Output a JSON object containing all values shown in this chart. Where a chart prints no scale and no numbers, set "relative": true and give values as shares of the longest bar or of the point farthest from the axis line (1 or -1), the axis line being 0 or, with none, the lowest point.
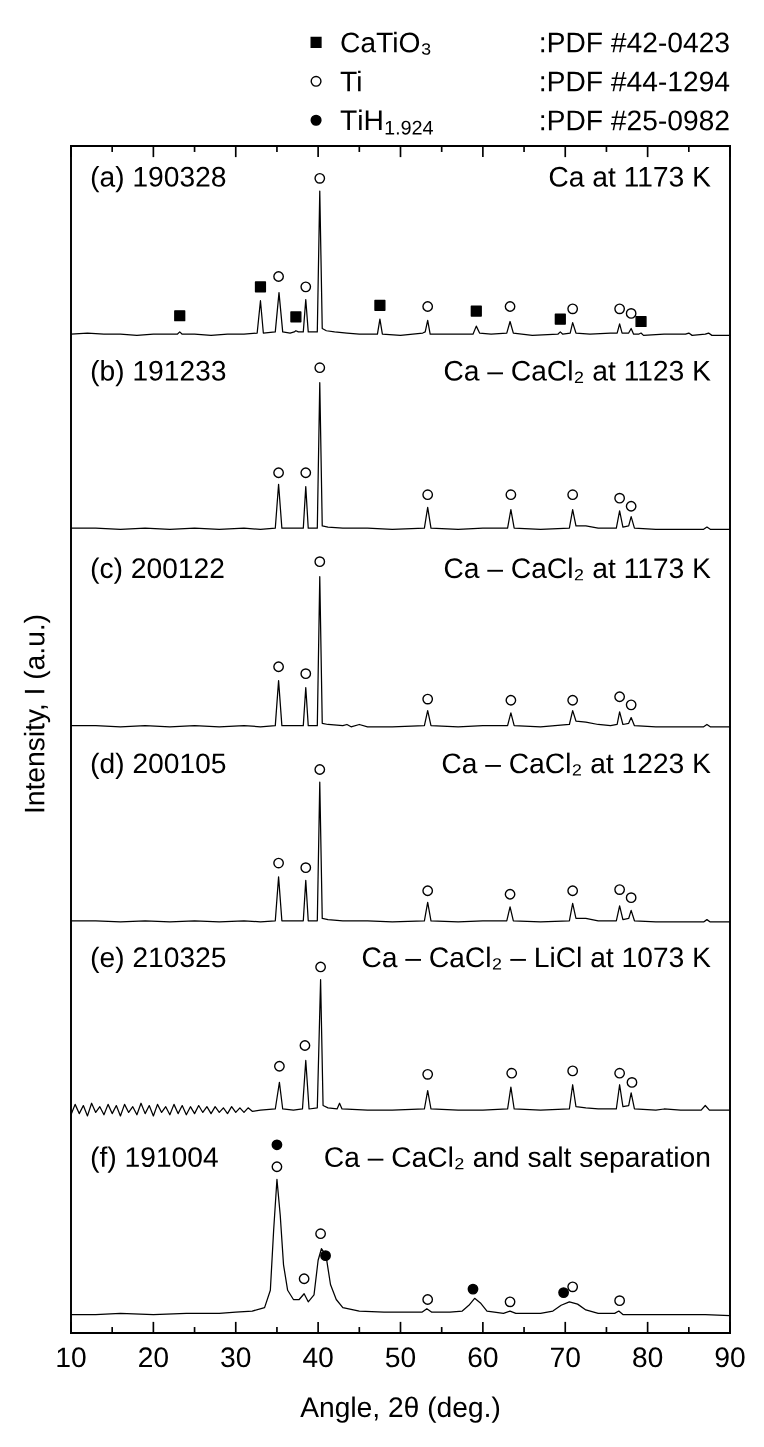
{
  "chart_data": {
    "type": "line",
    "relative": true,
    "xlabel": "Angle, 2θ (deg.)",
    "ylabel": "Intensity, I (a.u.)",
    "legend": "top right",
    "xlim": [
      10,
      90
    ],
    "xticks": [
      10,
      {
        "value": 15,
        "label": null
      },
      20,
      {
        "value": 25,
        "label": null
      },
      30,
      {
        "value": 35,
        "label": null
      },
      40,
      {
        "value": 45,
        "label": null
      },
      50,
      {
        "value": 55,
        "label": null
      },
      60,
      {
        "value": 65,
        "label": null
      },
      70,
      {
        "value": 75,
        "label": null
      },
      80,
      {
        "value": 85,
        "label": null
      },
      90
    ],
    "annotations": [
      ":PDF #42-0423",
      ":PDF #44-1294",
      ":PDF #25-0982",
      "(a) 190328",
      "Ca at 1173 K",
      "(b) 191233",
      "Ca – CaCl₂ at 1123 K",
      "(c) 200122",
      "Ca – CaCl₂ at 1173 K",
      "(d) 200105",
      "Ca – CaCl₂ at 1223 K",
      "(e) 210325",
      "Ca – CaCl₂ – LiCl at 1073 K",
      "(f) 191004",
      "Ca – CaCl₂ and salt separation"
    ],
    "series": [
      {
        "color": "#000000",
        "x": [
          10,
          12,
          14,
          16,
          18,
          20,
          22,
          22.9,
          23.2,
          23.5,
          25,
          27,
          29,
          31,
          32.6,
          33.0,
          33.35,
          34.8,
          35.25,
          35.7,
          36.6,
          37.1,
          37.3,
          37.6,
          38.2,
          38.5,
          38.8,
          39.9,
          40.2,
          40.5,
          41.0,
          42.0,
          43.5,
          45,
          47.2,
          47.5,
          47.8,
          50,
          52.7,
          53.0,
          53.3,
          53.6,
          56,
          58.8,
          59.2,
          59.6,
          61,
          62.9,
          63.3,
          63.7,
          66,
          69.1,
          69.4,
          69.7,
          70.6,
          70.9,
          71.3,
          73,
          75.5,
          76.3,
          76.6,
          76.9,
          77.7,
          78.0,
          78.3,
          78.9,
          79.2,
          79.5,
          82,
          84.6,
          85.0,
          85.4,
          87,
          87.4,
          87.8,
          90
        ],
        "values": [
          0.865,
          0.866,
          0.865,
          0.865,
          0.864,
          0.865,
          0.865,
          0.865,
          0.867,
          0.865,
          0.865,
          0.864,
          0.865,
          0.865,
          0.866,
          0.894,
          0.866,
          0.867,
          0.901,
          0.867,
          0.866,
          0.867,
          0.868,
          0.867,
          0.867,
          0.895,
          0.867,
          0.867,
          0.989,
          0.87,
          0.868,
          0.867,
          0.866,
          0.865,
          0.865,
          0.878,
          0.865,
          0.864,
          0.866,
          0.867,
          0.877,
          0.865,
          0.865,
          0.865,
          0.872,
          0.866,
          0.865,
          0.866,
          0.876,
          0.866,
          0.864,
          0.865,
          0.867,
          0.865,
          0.866,
          0.875,
          0.866,
          0.865,
          0.866,
          0.866,
          0.874,
          0.866,
          0.866,
          0.87,
          0.865,
          0.865,
          0.866,
          0.864,
          0.865,
          0.865,
          0.866,
          0.864,
          0.865,
          0.866,
          0.864,
          0.864
        ]
      },
      {
        "color": "#000000",
        "x": [
          10,
          13,
          16,
          19,
          22,
          25,
          28,
          31,
          33,
          34.8,
          35.2,
          35.6,
          37,
          38.2,
          38.5,
          38.8,
          39.9,
          40.2,
          40.5,
          41.2,
          43,
          46,
          49,
          52.9,
          53.3,
          53.7,
          57,
          60,
          63.0,
          63.4,
          63.8,
          67,
          70.5,
          70.9,
          71.3,
          72.5,
          74,
          76.2,
          76.6,
          77.0,
          77.7,
          78.0,
          78.4,
          81,
          84,
          86.8,
          87.2,
          87.6,
          90
        ],
        "values": [
          0.697,
          0.697,
          0.696,
          0.697,
          0.696,
          0.697,
          0.696,
          0.697,
          0.696,
          0.697,
          0.735,
          0.697,
          0.697,
          0.697,
          0.733,
          0.697,
          0.697,
          0.823,
          0.699,
          0.698,
          0.697,
          0.697,
          0.696,
          0.697,
          0.715,
          0.697,
          0.696,
          0.697,
          0.697,
          0.713,
          0.697,
          0.696,
          0.697,
          0.713,
          0.699,
          0.699,
          0.697,
          0.697,
          0.712,
          0.698,
          0.699,
          0.707,
          0.697,
          0.696,
          0.696,
          0.696,
          0.698,
          0.696,
          0.696
        ]
      },
      {
        "color": "#000000",
        "x": [
          10,
          13,
          16,
          19,
          22,
          25,
          28,
          31,
          33,
          34.8,
          35.2,
          35.6,
          37,
          38.2,
          38.5,
          38.8,
          39.9,
          40.2,
          40.5,
          41.2,
          43,
          43.5,
          44,
          45,
          46,
          49,
          52.9,
          53.3,
          53.7,
          57,
          60,
          63.0,
          63.4,
          63.8,
          67,
          70.5,
          70.9,
          71.3,
          72.5,
          74,
          75.5,
          76.3,
          76.6,
          77.0,
          77.7,
          78.0,
          78.4,
          81,
          84,
          86.8,
          87.2,
          87.6,
          90
        ],
        "values": [
          0.526,
          0.526,
          0.525,
          0.526,
          0.525,
          0.526,
          0.525,
          0.526,
          0.525,
          0.526,
          0.565,
          0.526,
          0.526,
          0.526,
          0.559,
          0.526,
          0.526,
          0.655,
          0.528,
          0.527,
          0.526,
          0.527,
          0.525,
          0.527,
          0.525,
          0.525,
          0.526,
          0.539,
          0.526,
          0.525,
          0.526,
          0.526,
          0.537,
          0.526,
          0.525,
          0.527,
          0.539,
          0.53,
          0.529,
          0.527,
          0.526,
          0.527,
          0.538,
          0.527,
          0.528,
          0.533,
          0.526,
          0.525,
          0.525,
          0.525,
          0.527,
          0.525,
          0.525
        ]
      },
      {
        "color": "#000000",
        "x": [
          10,
          13,
          16,
          19,
          22,
          25,
          28,
          31,
          33,
          34.8,
          35.2,
          35.6,
          37,
          38.2,
          38.5,
          38.8,
          39.9,
          40.2,
          40.5,
          41.2,
          43,
          46,
          49,
          52.9,
          53.3,
          53.7,
          57,
          60,
          62.9,
          63.3,
          63.7,
          67,
          70.5,
          70.9,
          71.3,
          72.5,
          74,
          76.2,
          76.6,
          77.0,
          77.7,
          78.0,
          78.4,
          81,
          84,
          86.8,
          87.2,
          87.6,
          90
        ],
        "values": [
          0.357,
          0.357,
          0.356,
          0.357,
          0.356,
          0.357,
          0.356,
          0.357,
          0.356,
          0.357,
          0.395,
          0.357,
          0.357,
          0.357,
          0.392,
          0.357,
          0.357,
          0.477,
          0.359,
          0.358,
          0.357,
          0.357,
          0.356,
          0.357,
          0.373,
          0.357,
          0.356,
          0.357,
          0.357,
          0.369,
          0.357,
          0.356,
          0.357,
          0.372,
          0.359,
          0.359,
          0.357,
          0.357,
          0.37,
          0.358,
          0.359,
          0.366,
          0.357,
          0.356,
          0.356,
          0.356,
          0.358,
          0.356,
          0.356
        ]
      },
      {
        "color": "#000000",
        "x": [
          10,
          10.5,
          11,
          11.5,
          12,
          12.5,
          13,
          13.5,
          14,
          14.5,
          15,
          15.5,
          16,
          16.5,
          17,
          17.5,
          18,
          18.5,
          19,
          19.5,
          20,
          20.5,
          21,
          21.5,
          22,
          22.5,
          23,
          23.5,
          24,
          24.5,
          25,
          25.5,
          26,
          26.5,
          27,
          27.5,
          28,
          28.5,
          29,
          29.5,
          30,
          30.5,
          31,
          31.5,
          32,
          33,
          34.8,
          35.3,
          35.7,
          37,
          38.1,
          38.5,
          38.9,
          39.9,
          40.3,
          40.6,
          41.2,
          42.3,
          42.6,
          42.9,
          46,
          49,
          52.9,
          53.3,
          53.7,
          57,
          60,
          63.0,
          63.4,
          63.8,
          67,
          70.5,
          70.9,
          71.3,
          72.5,
          74,
          76.2,
          76.6,
          77.0,
          77.7,
          78.0,
          78.4,
          81,
          82,
          84,
          86.5,
          87,
          87.5,
          90
        ],
        "values": [
          0.189,
          0.198,
          0.19,
          0.197,
          0.188,
          0.199,
          0.191,
          0.196,
          0.189,
          0.198,
          0.19,
          0.197,
          0.188,
          0.198,
          0.191,
          0.196,
          0.189,
          0.199,
          0.19,
          0.197,
          0.188,
          0.198,
          0.191,
          0.196,
          0.189,
          0.198,
          0.19,
          0.197,
          0.189,
          0.196,
          0.19,
          0.197,
          0.191,
          0.196,
          0.19,
          0.196,
          0.191,
          0.195,
          0.19,
          0.196,
          0.191,
          0.195,
          0.191,
          0.195,
          0.192,
          0.193,
          0.194,
          0.217,
          0.194,
          0.193,
          0.194,
          0.236,
          0.194,
          0.195,
          0.306,
          0.197,
          0.195,
          0.194,
          0.199,
          0.194,
          0.193,
          0.193,
          0.194,
          0.21,
          0.194,
          0.193,
          0.193,
          0.194,
          0.213,
          0.194,
          0.193,
          0.194,
          0.215,
          0.196,
          0.195,
          0.194,
          0.194,
          0.215,
          0.196,
          0.197,
          0.208,
          0.194,
          0.193,
          0.194,
          0.193,
          0.193,
          0.197,
          0.193,
          0.193
        ]
      },
      {
        "color": "#000000",
        "x": [
          10,
          13,
          16,
          20,
          24,
          28,
          30,
          32,
          33.5,
          34.2,
          34.6,
          35.0,
          35.4,
          35.8,
          36.3,
          37.0,
          37.7,
          38.3,
          38.8,
          39.5,
          40.0,
          40.4,
          40.7,
          41.0,
          41.5,
          42.2,
          43,
          45,
          48,
          52.6,
          53.2,
          53.8,
          56,
          57.5,
          58.3,
          59.0,
          59.7,
          60.5,
          62.5,
          63.3,
          64,
          67,
          68.5,
          69.5,
          70.5,
          71.5,
          72.5,
          74,
          76,
          76.5,
          77,
          80,
          84,
          87,
          90
        ],
        "values": [
          0.016,
          0.016,
          0.017,
          0.016,
          0.017,
          0.017,
          0.018,
          0.019,
          0.022,
          0.037,
          0.089,
          0.133,
          0.102,
          0.059,
          0.037,
          0.029,
          0.029,
          0.034,
          0.027,
          0.033,
          0.063,
          0.073,
          0.07,
          0.065,
          0.042,
          0.029,
          0.022,
          0.019,
          0.018,
          0.018,
          0.021,
          0.018,
          0.018,
          0.019,
          0.024,
          0.03,
          0.026,
          0.019,
          0.017,
          0.019,
          0.017,
          0.017,
          0.019,
          0.024,
          0.027,
          0.025,
          0.02,
          0.017,
          0.017,
          0.019,
          0.016,
          0.016,
          0.016,
          0.016,
          0.015
        ]
      },
      {
        "name": "CaTiO₃",
        "type": "scatter",
        "marker": "square",
        "color": "#000000",
        "x": [
          23.2,
          33.0,
          37.3,
          47.5,
          59.2,
          69.4,
          79.2
        ],
        "values": [
          0.881,
          0.906,
          0.88,
          0.89,
          0.885,
          0.878,
          0.876
        ]
      },
      {
        "name": "Ti",
        "type": "scatter",
        "marker": "circle",
        "color": "#ffffff",
        "x": [
          35.2,
          38.5,
          40.2,
          53.3,
          63.3,
          70.9,
          76.6,
          78.0,
          35.2,
          38.5,
          40.2,
          53.3,
          63.4,
          70.9,
          76.6,
          78.0,
          35.2,
          38.5,
          40.2,
          53.3,
          63.4,
          70.9,
          76.6,
          78.0,
          35.2,
          38.5,
          40.2,
          53.3,
          63.3,
          70.9,
          76.6,
          78.0,
          35.3,
          38.4,
          40.3,
          53.3,
          63.5,
          70.9,
          76.6,
          78.1,
          35.0,
          38.3,
          40.3,
          53.3,
          63.3,
          70.9,
          76.6
        ],
        "values": [
          0.915,
          0.906,
          1,
          0.889,
          0.889,
          0.887,
          0.887,
          0.883,
          0.745,
          0.745,
          0.836,
          0.726,
          0.726,
          0.726,
          0.723,
          0.716,
          0.577,
          0.571,
          0.668,
          0.549,
          0.548,
          0.548,
          0.551,
          0.544,
          0.407,
          0.403,
          0.488,
          0.383,
          0.38,
          0.383,
          0.384,
          0.377,
          0.231,
          0.249,
          0.317,
          0.224,
          0.225,
          0.227,
          0.225,
          0.217,
          0.144,
          0.047,
          0.086,
          0.029,
          0.027,
          0.04,
          0.028
        ]
      },
      {
        "name": "TiH$_{1.924}$",
        "type": "scatter",
        "marker": "circle",
        "color": "#000000",
        "x": [
          35.0,
          40.9,
          58.8,
          69.8
        ],
        "values": [
          0.163,
          0.067,
          0.038,
          0.035
        ]
      }
    ]
  }
}
